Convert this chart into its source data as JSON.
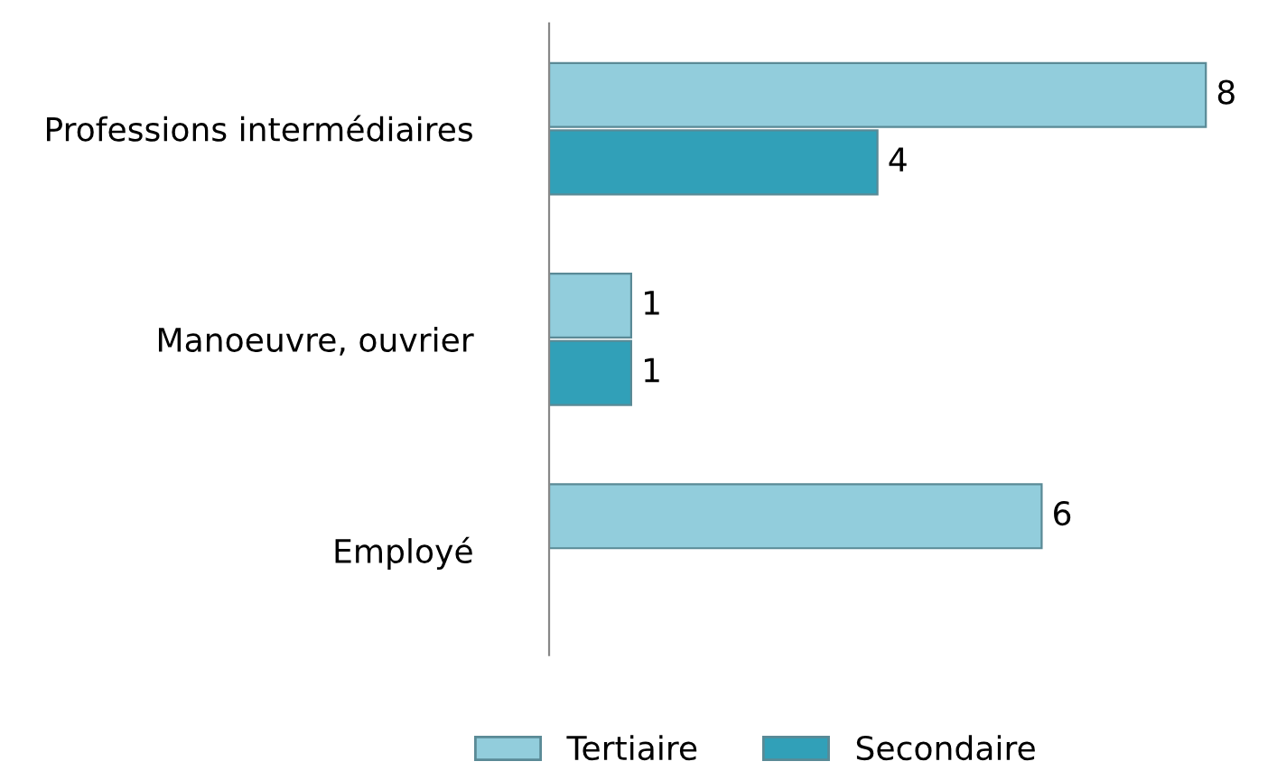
{
  "chart_data": {
    "type": "bar",
    "orientation": "horizontal",
    "categories": [
      "Professions intermédiaires",
      "Manoeuvre, ouvrier",
      "Employé"
    ],
    "series": [
      {
        "name": "Tertiaire",
        "color": "#92cddc",
        "values": [
          8,
          1,
          6
        ]
      },
      {
        "name": "Secondaire",
        "color": "#31a0b8",
        "values": [
          4,
          1,
          null
        ]
      }
    ],
    "data_labels": true,
    "legend": "bottom",
    "grid": false
  }
}
